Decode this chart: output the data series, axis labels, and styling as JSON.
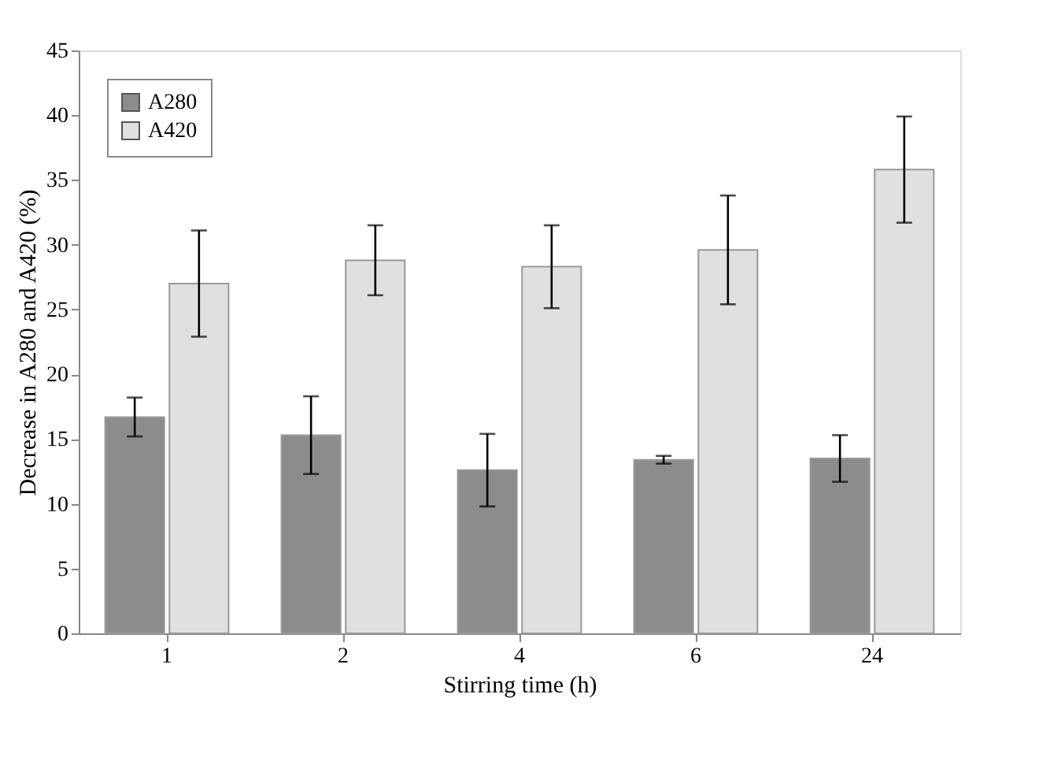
{
  "chart_data": {
    "type": "bar",
    "xlabel": "Stirring time (h)",
    "ylabel": "Decrease in A280 and A420  (%)",
    "categories": [
      "1",
      "2",
      "4",
      "6",
      "24"
    ],
    "series": [
      {
        "name": "A280",
        "color": "#8c8c8c",
        "values": [
          16.7,
          15.3,
          12.6,
          13.4,
          13.5
        ],
        "errors": [
          1.5,
          3.0,
          2.8,
          0.3,
          1.8
        ]
      },
      {
        "name": "A420",
        "color": "#e0e0e0",
        "values": [
          27.0,
          28.8,
          28.3,
          29.6,
          35.8
        ],
        "errors": [
          4.1,
          2.7,
          3.2,
          4.2,
          4.1
        ]
      }
    ],
    "ylim": [
      0,
      45
    ],
    "yticks": [
      0,
      5,
      10,
      15,
      20,
      25,
      30,
      35,
      40,
      45
    ],
    "grid": false,
    "legend": "top left"
  }
}
